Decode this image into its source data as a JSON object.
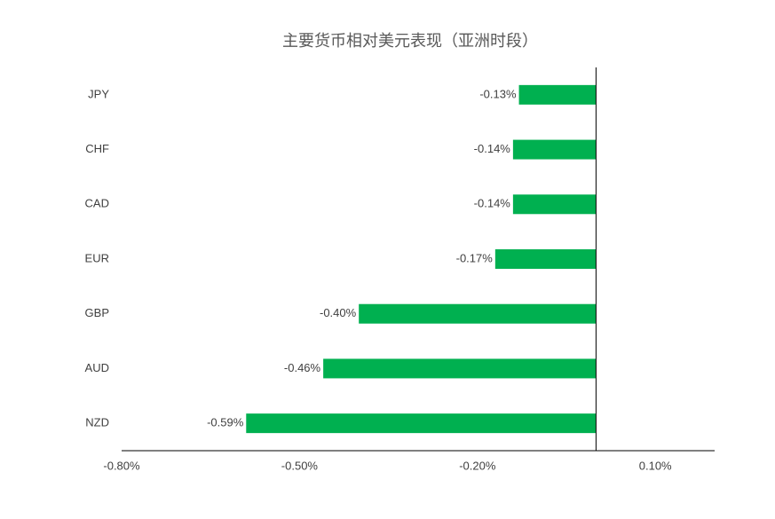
{
  "chart_data": {
    "type": "hbar",
    "title": "主要货币相对美元表现（亚洲时段）",
    "categories": [
      "JPY",
      "CHF",
      "CAD",
      "EUR",
      "GBP",
      "AUD",
      "NZD"
    ],
    "values": [
      -0.13,
      -0.14,
      -0.14,
      -0.17,
      -0.4,
      -0.46,
      -0.59
    ],
    "value_labels": [
      "-0.13%",
      "-0.14%",
      "-0.14%",
      "-0.17%",
      "-0.40%",
      "-0.46%",
      "-0.59%"
    ],
    "color": "#00b050",
    "xlim": [
      -0.8,
      0.2
    ],
    "xticks": [
      {
        "value": -0.8,
        "label": "-0.80%"
      },
      {
        "value": -0.5,
        "label": "-0.50%"
      },
      {
        "value": -0.2,
        "label": "-0.20%"
      },
      {
        "value": 0.1,
        "label": "0.10%"
      }
    ],
    "grid": false
  }
}
